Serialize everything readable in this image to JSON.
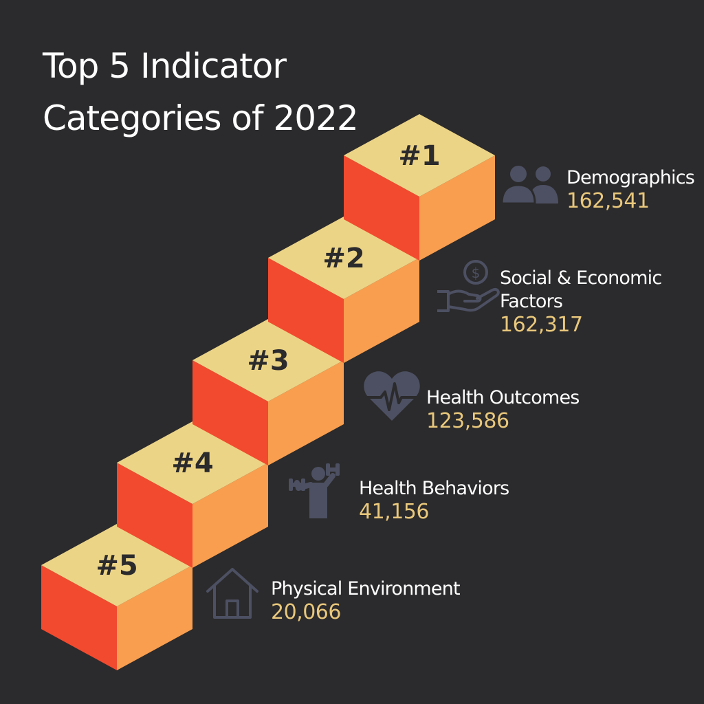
{
  "title": {
    "line1": "Top 5 Indicator",
    "line2": "Categories of 2022"
  },
  "colors": {
    "background": "#2b2a2c",
    "cube_top": "#ecd486",
    "cube_left": "#f24a2e",
    "cube_right": "#f99e4f",
    "icon": "#4c5062",
    "value": "#e9c87c",
    "text": "#ffffff"
  },
  "chart_data": {
    "type": "bar",
    "title": "Top 5 Indicator Categories of 2022",
    "categories": [
      "Demographics",
      "Social & Economic Factors",
      "Health Outcomes",
      "Health Behaviors",
      "Physical Environment"
    ],
    "ranks": [
      "#1",
      "#2",
      "#3",
      "#4",
      "#5"
    ],
    "values": [
      162541,
      162317,
      123586,
      41156,
      20066
    ],
    "value_labels": [
      "162,541",
      "162,317",
      "123,586",
      "41,156",
      "20,066"
    ],
    "items": [
      {
        "rank": "#1",
        "name": "Demographics",
        "value": "162,541",
        "icon": "people-icon"
      },
      {
        "rank": "#2",
        "name_lines": [
          "Social & Economic",
          "Factors"
        ],
        "value": "162,317",
        "icon": "money-hand-icon"
      },
      {
        "rank": "#3",
        "name": "Health Outcomes",
        "value": "123,586",
        "icon": "heart-pulse-icon"
      },
      {
        "rank": "#4",
        "name": "Health Behaviors",
        "value": "41,156",
        "icon": "dumbbell-person-icon"
      },
      {
        "rank": "#5",
        "name": "Physical Environment",
        "value": "20,066",
        "icon": "house-icon"
      }
    ]
  }
}
